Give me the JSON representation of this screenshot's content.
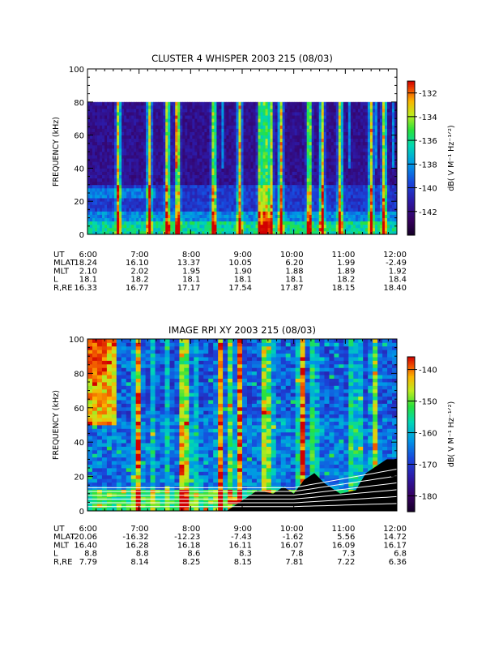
{
  "chart_data": [
    {
      "type": "heatmap",
      "title": "CLUSTER 4 WHISPER 2003 215 (08/03)",
      "xlabel": "",
      "ylabel": "FREQUENCY (kHz)",
      "xlim": [
        6,
        12
      ],
      "ylim": [
        0,
        100
      ],
      "x_ticks": [
        "6:00",
        "7:00",
        "8:00",
        "9:00",
        "10:00",
        "11:00",
        "12:00"
      ],
      "y_ticks": [
        "0",
        "20",
        "40",
        "60",
        "80",
        "100"
      ],
      "data_ymax": 80,
      "colorbar": {
        "label": "dB( V M⁻¹ Hz⁻¹ᐟ²)",
        "min": -144,
        "max": -131,
        "ticks": [
          "-132",
          "-134",
          "-136",
          "-138",
          "-140",
          "-142"
        ],
        "tick_values": [
          -132,
          -134,
          -136,
          -138,
          -140,
          -142
        ]
      },
      "emission_bursts_hours": [
        6.6,
        7.2,
        7.55,
        7.75,
        8.45,
        8.95,
        9.35,
        9.45,
        9.55,
        9.75,
        10.3,
        10.55,
        10.9,
        11.5,
        11.75
      ],
      "ephemeris": {
        "labels": [
          "UT",
          "MLAT",
          "MLT",
          "L",
          "R,RE"
        ],
        "rows": [
          [
            "6:00",
            "7:00",
            "8:00",
            "9:00",
            "10:00",
            "11:00",
            "12:00"
          ],
          [
            "18.24",
            "16.10",
            "13.37",
            "10.05",
            "6.20",
            "1.99",
            "-2.49"
          ],
          [
            "2.10",
            "2.02",
            "1.95",
            "1.90",
            "1.88",
            "1.89",
            "1.92"
          ],
          [
            "18.1",
            "18.2",
            "18.1",
            "18.1",
            "18.1",
            "18.2",
            "18.4"
          ],
          [
            "16.33",
            "16.77",
            "17.17",
            "17.54",
            "17.87",
            "18.15",
            "18.40"
          ]
        ]
      }
    },
    {
      "type": "heatmap",
      "title": "IMAGE RPI XY 2003 215 (08/03)",
      "xlabel": "",
      "ylabel": "FREQUENCY (kHz)",
      "xlim": [
        6,
        12
      ],
      "ylim": [
        0,
        100
      ],
      "x_ticks": [
        "6:00",
        "7:00",
        "8:00",
        "9:00",
        "10:00",
        "11:00",
        "12:00"
      ],
      "y_ticks": [
        "0",
        "20",
        "40",
        "60",
        "80",
        "100"
      ],
      "data_ymax": 100,
      "colorbar": {
        "label": "dB( V M⁻¹ Hz⁻¹ᐟ²)",
        "min": -185,
        "max": -136,
        "ticks": [
          "-140",
          "-150",
          "-160",
          "-170",
          "-180"
        ],
        "tick_values": [
          -140,
          -150,
          -160,
          -170,
          -180
        ]
      },
      "emission_bursts_hours": [
        7.0,
        7.85,
        7.95,
        8.55,
        8.8,
        8.95,
        9.45,
        9.55,
        10.15,
        10.4,
        11.15,
        11.55
      ],
      "black_region_top_kHz": [
        [
          6.0,
          0
        ],
        [
          8.7,
          0
        ],
        [
          8.85,
          3
        ],
        [
          9.1,
          8
        ],
        [
          9.3,
          12
        ],
        [
          9.6,
          10
        ],
        [
          9.8,
          14
        ],
        [
          10.0,
          10
        ],
        [
          10.2,
          18
        ],
        [
          10.4,
          22
        ],
        [
          10.6,
          16
        ],
        [
          10.9,
          10
        ],
        [
          11.2,
          12
        ],
        [
          11.4,
          22
        ],
        [
          11.6,
          26
        ],
        [
          11.8,
          30
        ],
        [
          12.0,
          30
        ]
      ],
      "ephemeris": {
        "labels": [
          "UT",
          "MLAT",
          "MLT",
          "L",
          "R,RE"
        ],
        "rows": [
          [
            "6:00",
            "7:00",
            "8:00",
            "9:00",
            "10:00",
            "11:00",
            "12:00"
          ],
          [
            "-20.06",
            "-16.32",
            "-12.23",
            "-7.43",
            "-1.62",
            "5.56",
            "14.72"
          ],
          [
            "16.40",
            "16.28",
            "16.18",
            "16.11",
            "16.07",
            "16.09",
            "16.17"
          ],
          [
            "8.8",
            "8.8",
            "8.6",
            "8.3",
            "7.8",
            "7.3",
            "6.8"
          ],
          [
            "7.79",
            "8.14",
            "8.25",
            "8.15",
            "7.81",
            "7.22",
            "6.36"
          ]
        ]
      }
    }
  ]
}
